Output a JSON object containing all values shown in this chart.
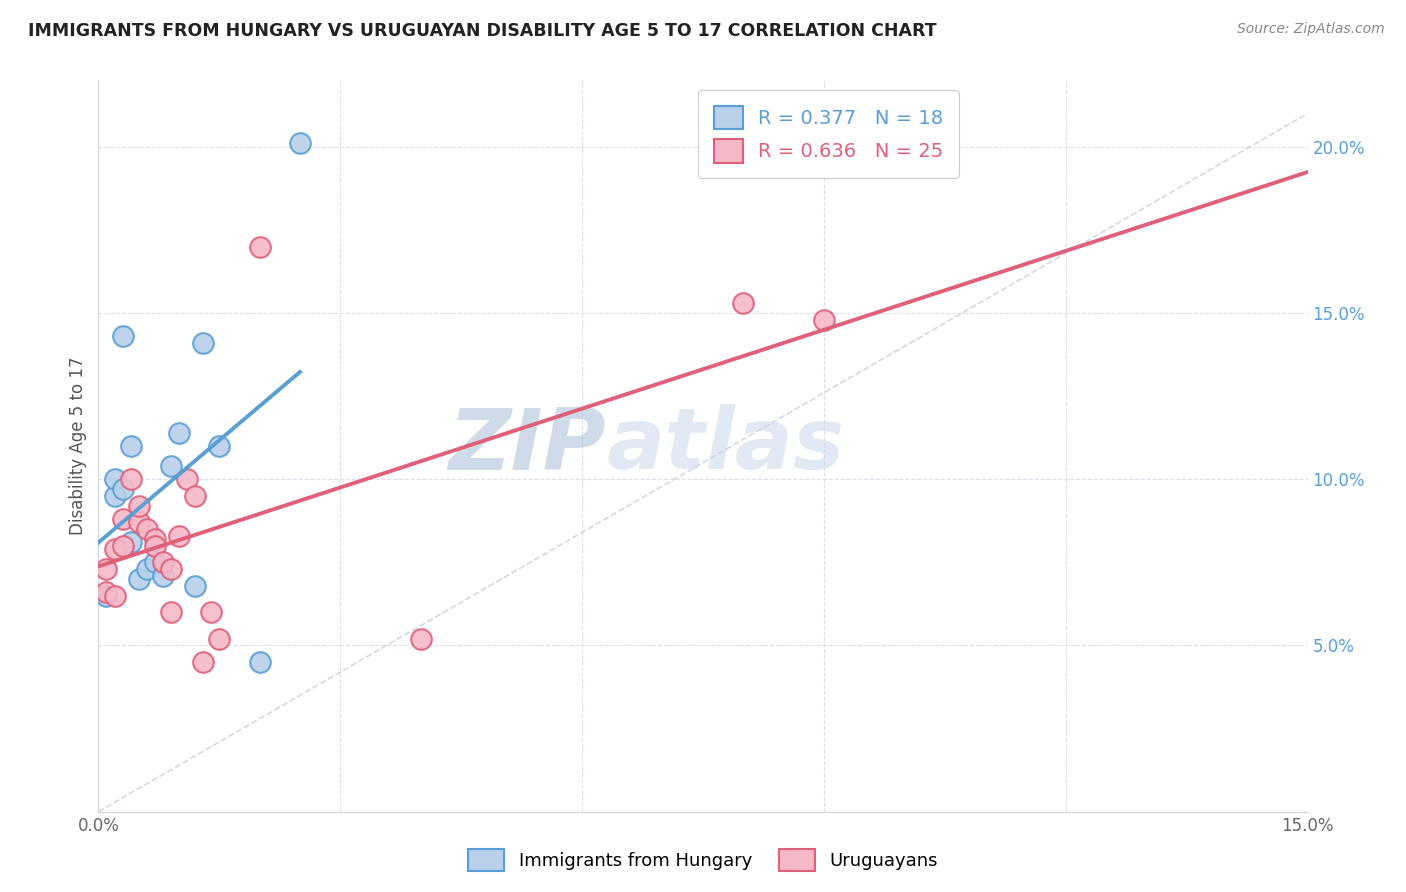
{
  "title": "IMMIGRANTS FROM HUNGARY VS URUGUAYAN DISABILITY AGE 5 TO 17 CORRELATION CHART",
  "source": "Source: ZipAtlas.com",
  "ylabel_label": "Disability Age 5 to 17",
  "xlim": [
    0.0,
    0.15
  ],
  "ylim": [
    0.0,
    0.22
  ],
  "blue_R": 0.377,
  "blue_N": 18,
  "pink_R": 0.636,
  "pink_N": 25,
  "blue_color": "#b8d0ea",
  "pink_color": "#f5b8c8",
  "blue_line_color": "#5a9fd4",
  "pink_line_color": "#e0607a",
  "diag_line_color": "#c0c8d8",
  "bg_color": "#ffffff",
  "grid_color": "#dde0ea",
  "watermark_color": "#dce8f5",
  "blue_points_x": [
    0.001,
    0.002,
    0.002,
    0.003,
    0.003,
    0.004,
    0.004,
    0.005,
    0.006,
    0.007,
    0.008,
    0.009,
    0.01,
    0.012,
    0.013,
    0.015,
    0.02,
    0.025
  ],
  "blue_points_y": [
    0.065,
    0.095,
    0.1,
    0.097,
    0.143,
    0.081,
    0.11,
    0.07,
    0.073,
    0.075,
    0.071,
    0.104,
    0.114,
    0.068,
    0.141,
    0.11,
    0.045,
    0.201
  ],
  "pink_points_x": [
    0.001,
    0.001,
    0.002,
    0.002,
    0.003,
    0.003,
    0.004,
    0.005,
    0.005,
    0.006,
    0.007,
    0.007,
    0.008,
    0.009,
    0.009,
    0.01,
    0.011,
    0.012,
    0.013,
    0.014,
    0.015,
    0.02,
    0.04,
    0.08,
    0.09
  ],
  "pink_points_y": [
    0.066,
    0.073,
    0.065,
    0.079,
    0.08,
    0.088,
    0.1,
    0.087,
    0.092,
    0.085,
    0.082,
    0.08,
    0.075,
    0.073,
    0.06,
    0.083,
    0.1,
    0.095,
    0.045,
    0.06,
    0.052,
    0.17,
    0.052,
    0.153,
    0.148
  ],
  "blue_line_x": [
    0.0,
    0.028
  ],
  "blue_line_y": [
    0.065,
    0.128
  ],
  "pink_line_x": [
    0.0,
    0.15
  ],
  "pink_line_y": [
    0.058,
    0.175
  ]
}
